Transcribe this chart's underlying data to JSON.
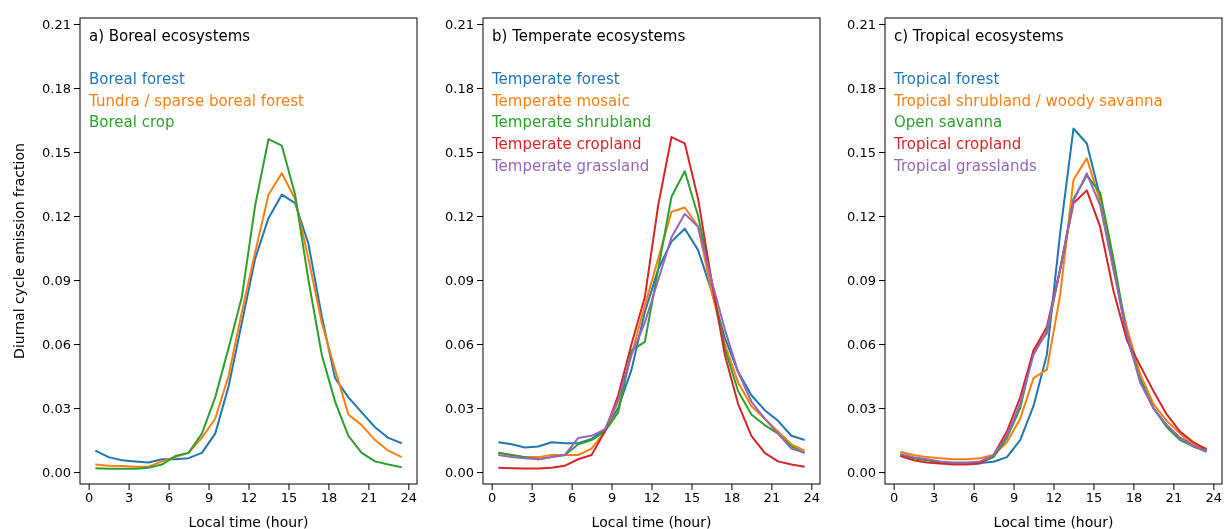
{
  "chart_data": [
    {
      "type": "line",
      "title": "a) Boreal ecosystems",
      "xlabel": "Local time (hour)",
      "ylabel": "Diurnal cycle emission fraction",
      "legend": "top left",
      "xlim": [
        -0.65,
        24.65
      ],
      "ylim": [
        -0.0056,
        0.2128
      ],
      "xticks": [
        0,
        3,
        6,
        9,
        12,
        15,
        18,
        21,
        24
      ],
      "yticks": [
        {
          "value": 0,
          "label": "0.00"
        },
        {
          "value": 0.03,
          "label": "0.03"
        },
        {
          "value": 0.06,
          "label": "0.06"
        },
        {
          "value": 0.09,
          "label": "0.09"
        },
        {
          "value": 0.12,
          "label": "0.12"
        },
        {
          "value": 0.15,
          "label": "0.15"
        },
        {
          "value": 0.18,
          "label": "0.18"
        },
        {
          "value": 0.21,
          "label": "0.21"
        }
      ],
      "x": [
        0.5,
        1.5,
        2.5,
        3.5,
        4.5,
        5.5,
        6.5,
        7.5,
        8.5,
        9.5,
        10.5,
        11.5,
        12.5,
        13.5,
        14.5,
        15.5,
        16.5,
        17.5,
        18.5,
        19.5,
        20.5,
        21.5,
        22.5,
        23.5
      ],
      "series": [
        {
          "name": "Boreal forest",
          "color": "#1f77b4",
          "values": [
            0.01,
            0.007,
            0.0055,
            0.005,
            0.0045,
            0.006,
            0.006,
            0.0065,
            0.009,
            0.018,
            0.04,
            0.07,
            0.1,
            0.119,
            0.13,
            0.126,
            0.107,
            0.073,
            0.044,
            0.035,
            0.028,
            0.021,
            0.016,
            0.0135
          ]
        },
        {
          "name": "Tundra / sparse boreal forest",
          "color": "#ff7f0e",
          "values": [
            0.0035,
            0.003,
            0.0028,
            0.0025,
            0.0025,
            0.005,
            0.007,
            0.009,
            0.016,
            0.025,
            0.045,
            0.075,
            0.103,
            0.13,
            0.14,
            0.128,
            0.1,
            0.07,
            0.048,
            0.027,
            0.022,
            0.015,
            0.01,
            0.007
          ]
        },
        {
          "name": "Boreal crop",
          "color": "#2ca02c",
          "values": [
            0.0018,
            0.0015,
            0.0015,
            0.0015,
            0.002,
            0.0035,
            0.0075,
            0.009,
            0.018,
            0.035,
            0.058,
            0.082,
            0.125,
            0.156,
            0.153,
            0.13,
            0.09,
            0.055,
            0.033,
            0.017,
            0.009,
            0.005,
            0.0035,
            0.0023
          ]
        }
      ]
    },
    {
      "type": "line",
      "title": "b) Temperate ecosystems",
      "xlabel": "Local time (hour)",
      "legend": "top left",
      "xlim": [
        -0.65,
        24.65
      ],
      "ylim": [
        -0.0056,
        0.2128
      ],
      "xticks": [
        0,
        3,
        6,
        9,
        12,
        15,
        18,
        21,
        24
      ],
      "yticks": [
        {
          "value": 0,
          "label": "0.00"
        },
        {
          "value": 0.03,
          "label": "0.03"
        },
        {
          "value": 0.06,
          "label": "0.06"
        },
        {
          "value": 0.09,
          "label": "0.09"
        },
        {
          "value": 0.12,
          "label": "0.12"
        },
        {
          "value": 0.15,
          "label": "0.15"
        },
        {
          "value": 0.18,
          "label": "0.18"
        },
        {
          "value": 0.21,
          "label": "0.21"
        }
      ],
      "x": [
        0.5,
        1.5,
        2.5,
        3.5,
        4.5,
        5.5,
        6.5,
        7.5,
        8.5,
        9.5,
        10.5,
        11.5,
        12.5,
        13.5,
        14.5,
        15.5,
        16.5,
        17.5,
        18.5,
        19.5,
        20.5,
        21.5,
        22.5,
        23.5
      ],
      "series": [
        {
          "name": "Temperate forest",
          "color": "#1f77b4",
          "values": [
            0.014,
            0.013,
            0.0115,
            0.012,
            0.014,
            0.0135,
            0.0135,
            0.0155,
            0.02,
            0.03,
            0.048,
            0.075,
            0.095,
            0.108,
            0.114,
            0.104,
            0.085,
            0.063,
            0.047,
            0.036,
            0.029,
            0.024,
            0.017,
            0.015
          ]
        },
        {
          "name": "Temperate mosaic",
          "color": "#ff7f0e",
          "values": [
            0.009,
            0.008,
            0.007,
            0.007,
            0.008,
            0.008,
            0.008,
            0.011,
            0.019,
            0.033,
            0.055,
            0.078,
            0.1,
            0.122,
            0.124,
            0.115,
            0.085,
            0.06,
            0.042,
            0.031,
            0.025,
            0.019,
            0.013,
            0.01
          ]
        },
        {
          "name": "Temperate shrubland",
          "color": "#2ca02c",
          "values": [
            0.009,
            0.008,
            0.007,
            0.006,
            0.007,
            0.008,
            0.013,
            0.015,
            0.019,
            0.028,
            0.057,
            0.061,
            0.095,
            0.129,
            0.141,
            0.12,
            0.09,
            0.058,
            0.038,
            0.027,
            0.022,
            0.018,
            0.012,
            0.009
          ]
        },
        {
          "name": "Temperate cropland",
          "color": "#d62728",
          "values": [
            0.002,
            0.0018,
            0.0017,
            0.0017,
            0.002,
            0.003,
            0.006,
            0.008,
            0.019,
            0.036,
            0.06,
            0.082,
            0.125,
            0.157,
            0.154,
            0.128,
            0.09,
            0.055,
            0.032,
            0.017,
            0.009,
            0.005,
            0.0035,
            0.0025
          ]
        },
        {
          "name": "Temperate grassland",
          "color": "#9467bd",
          "values": [
            0.008,
            0.007,
            0.0065,
            0.006,
            0.007,
            0.008,
            0.016,
            0.017,
            0.02,
            0.034,
            0.055,
            0.07,
            0.09,
            0.11,
            0.121,
            0.115,
            0.09,
            0.067,
            0.047,
            0.033,
            0.025,
            0.018,
            0.011,
            0.009
          ]
        }
      ]
    },
    {
      "type": "line",
      "title": "c) Tropical ecosystems",
      "xlabel": "Local time (hour)",
      "legend": "top left",
      "xlim": [
        -0.65,
        24.65
      ],
      "ylim": [
        -0.0056,
        0.2128
      ],
      "xticks": [
        0,
        3,
        6,
        9,
        12,
        15,
        18,
        21,
        24
      ],
      "yticks": [
        {
          "value": 0,
          "label": "0.00"
        },
        {
          "value": 0.03,
          "label": "0.03"
        },
        {
          "value": 0.06,
          "label": "0.06"
        },
        {
          "value": 0.09,
          "label": "0.09"
        },
        {
          "value": 0.12,
          "label": "0.12"
        },
        {
          "value": 0.15,
          "label": "0.15"
        },
        {
          "value": 0.18,
          "label": "0.18"
        },
        {
          "value": 0.21,
          "label": "0.21"
        }
      ],
      "x": [
        0.5,
        1.5,
        2.5,
        3.5,
        4.5,
        5.5,
        6.5,
        7.5,
        8.5,
        9.5,
        10.5,
        11.5,
        12.5,
        13.5,
        14.5,
        15.5,
        16.5,
        17.5,
        18.5,
        19.5,
        20.5,
        21.5,
        22.5,
        23.5
      ],
      "series": [
        {
          "name": "Tropical forest",
          "color": "#1f77b4",
          "values": [
            null,
            null,
            null,
            null,
            null,
            0.004,
            0.0042,
            0.0048,
            0.007,
            0.015,
            0.031,
            0.055,
            0.112,
            0.161,
            0.154,
            0.129,
            0.097,
            0.063,
            0.044,
            0.03,
            0.022,
            0.016,
            0.013,
            0.01
          ]
        },
        {
          "name": "Tropical shrubland / woody savanna",
          "color": "#ff7f0e",
          "values": [
            0.0095,
            0.008,
            0.007,
            0.0065,
            0.006,
            0.006,
            0.0065,
            0.008,
            0.014,
            0.025,
            0.044,
            0.048,
            0.083,
            0.137,
            0.147,
            0.127,
            0.095,
            0.068,
            0.046,
            0.032,
            0.024,
            0.018,
            0.013,
            0.011
          ]
        },
        {
          "name": "Open savanna",
          "color": "#2ca02c",
          "values": [
            0.008,
            0.0065,
            0.0055,
            0.0045,
            0.004,
            0.004,
            0.0045,
            0.007,
            0.016,
            0.03,
            0.057,
            0.065,
            0.095,
            0.128,
            0.139,
            0.131,
            0.1,
            0.065,
            0.043,
            0.03,
            0.021,
            0.015,
            0.012,
            0.0095
          ]
        },
        {
          "name": "Tropical cropland",
          "color": "#d62728",
          "values": [
            0.0075,
            0.0055,
            0.0045,
            0.004,
            0.0035,
            0.0035,
            0.004,
            0.008,
            0.019,
            0.035,
            0.057,
            0.068,
            0.095,
            0.126,
            0.132,
            0.115,
            0.085,
            0.062,
            0.05,
            0.038,
            0.027,
            0.019,
            0.014,
            0.0105
          ]
        },
        {
          "name": "Tropical grasslands",
          "color": "#9467bd",
          "values": [
            0.0085,
            0.007,
            0.006,
            0.005,
            0.0045,
            0.0045,
            0.005,
            0.008,
            0.017,
            0.032,
            0.055,
            0.066,
            0.095,
            0.127,
            0.14,
            0.125,
            0.095,
            0.065,
            0.042,
            0.03,
            0.022,
            0.016,
            0.012,
            0.01
          ]
        }
      ]
    }
  ]
}
